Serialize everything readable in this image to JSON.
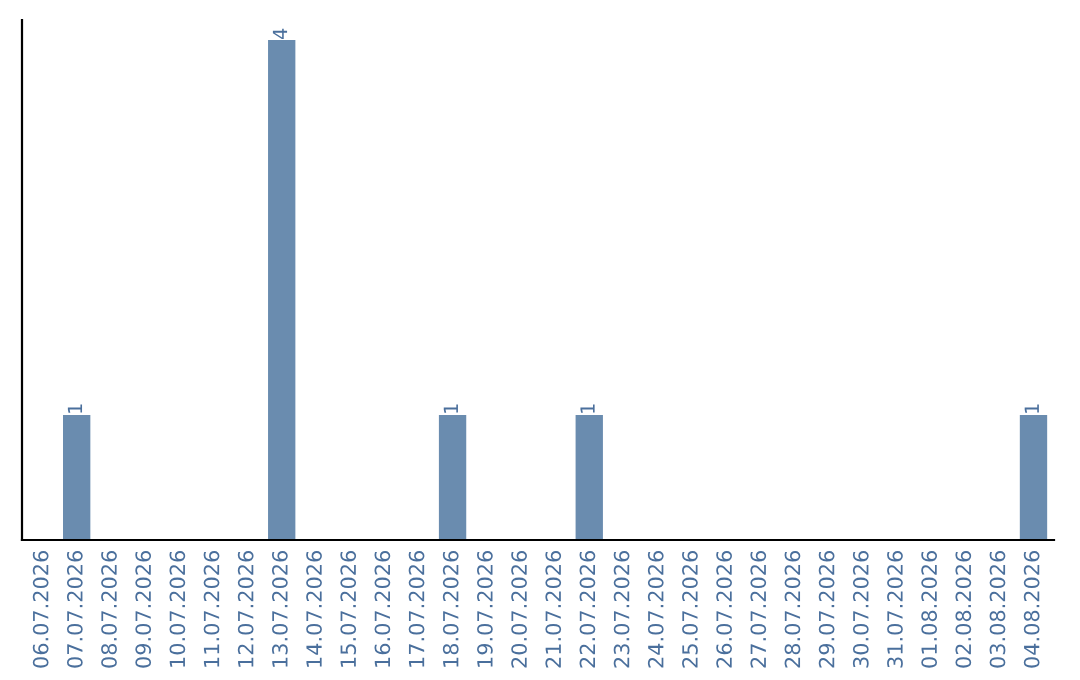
{
  "chart_data": {
    "type": "bar",
    "categories": [
      "06.07.2026",
      "07.07.2026",
      "08.07.2026",
      "09.07.2026",
      "10.07.2026",
      "11.07.2026",
      "12.07.2026",
      "13.07.2026",
      "14.07.2026",
      "15.07.2026",
      "16.07.2026",
      "17.07.2026",
      "18.07.2026",
      "19.07.2026",
      "20.07.2026",
      "21.07.2026",
      "22.07.2026",
      "23.07.2026",
      "24.07.2026",
      "25.07.2026",
      "26.07.2026",
      "27.07.2026",
      "28.07.2026",
      "29.07.2026",
      "30.07.2026",
      "31.07.2026",
      "01.08.2026",
      "02.08.2026",
      "03.08.2026",
      "04.08.2026"
    ],
    "values": [
      0,
      1,
      0,
      0,
      0,
      0,
      0,
      4,
      0,
      0,
      0,
      0,
      1,
      0,
      0,
      0,
      1,
      0,
      0,
      0,
      0,
      0,
      0,
      0,
      0,
      0,
      0,
      0,
      0,
      1
    ],
    "value_labels": [
      null,
      "1",
      null,
      null,
      null,
      null,
      null,
      "4",
      null,
      null,
      null,
      null,
      "1",
      null,
      null,
      null,
      "1",
      null,
      null,
      null,
      null,
      null,
      null,
      null,
      null,
      null,
      null,
      null,
      null,
      "1"
    ],
    "color": "#6a8caf",
    "tick_labels": "x",
    "grid": false,
    "legend": false
  }
}
